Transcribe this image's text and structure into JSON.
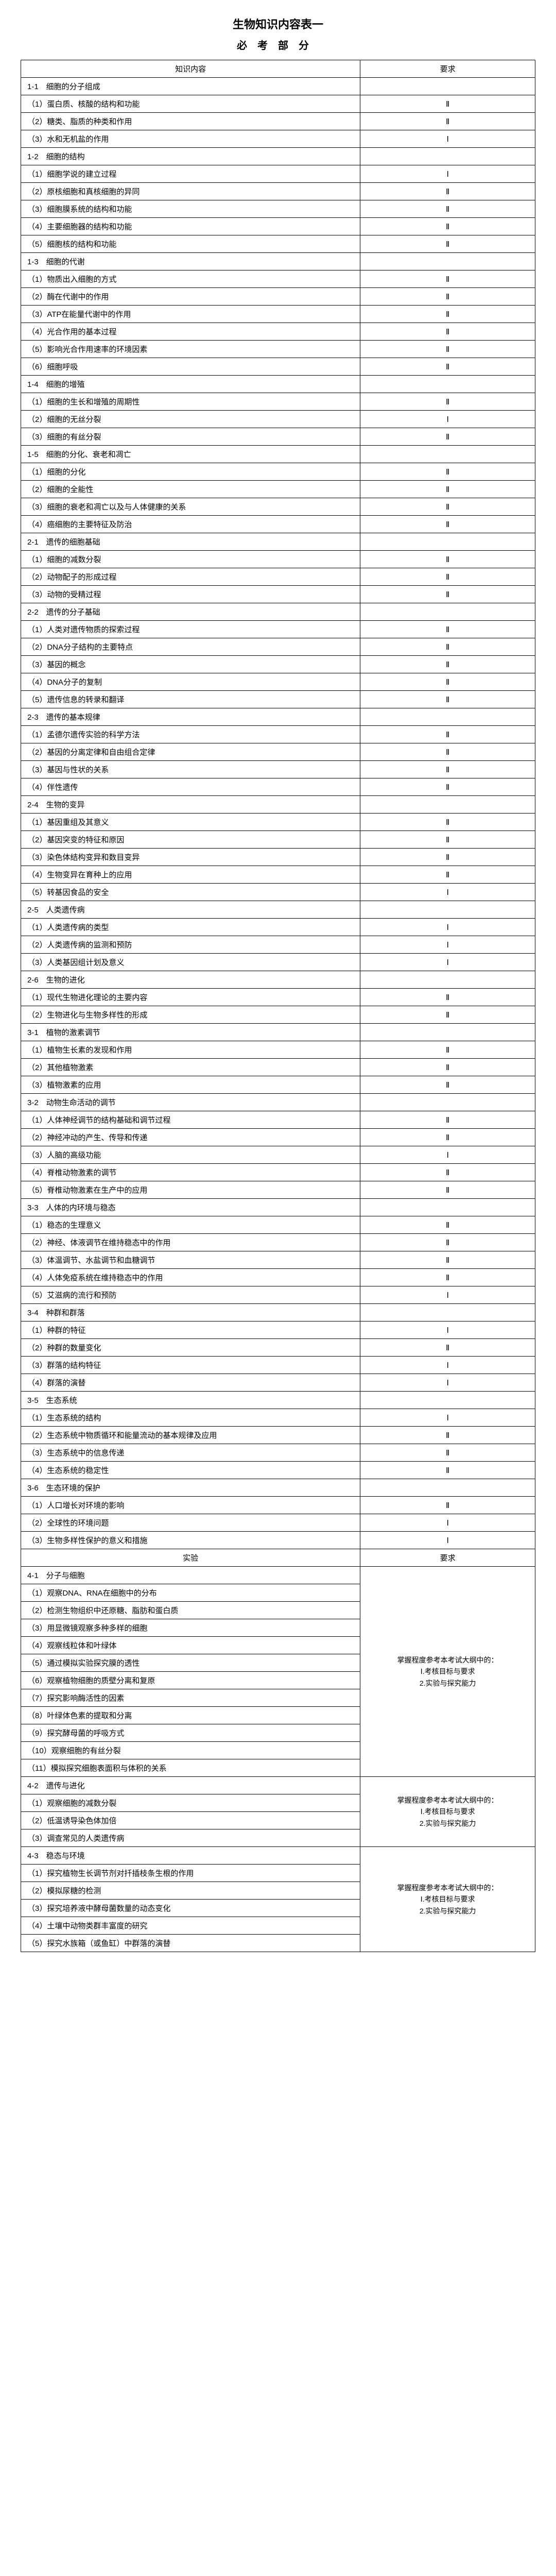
{
  "title": "生物知识内容表一",
  "subtitle": "必考部分",
  "headers": {
    "content": "知识内容",
    "req": "要求"
  },
  "sections": [
    {
      "h": "1-1　细胞的分子组成",
      "rows": [
        {
          "t": "（1）蛋白质、核酸的结构和功能",
          "r": "Ⅱ"
        },
        {
          "t": "（2）糖类、脂质的种类和作用",
          "r": "Ⅱ"
        },
        {
          "t": "（3）水和无机盐的作用",
          "r": "Ⅰ"
        }
      ]
    },
    {
      "h": "1-2　细胞的结构",
      "rows": [
        {
          "t": "（1）细胞学说的建立过程",
          "r": "Ⅰ"
        },
        {
          "t": "（2）原核细胞和真核细胞的异同",
          "r": "Ⅱ"
        },
        {
          "t": "（3）细胞膜系统的结构和功能",
          "r": "Ⅱ"
        },
        {
          "t": "（4）主要细胞器的结构和功能",
          "r": "Ⅱ"
        },
        {
          "t": "（5）细胞核的结构和功能",
          "r": "Ⅱ"
        }
      ]
    },
    {
      "h": "1-3　细胞的代谢",
      "rows": [
        {
          "t": "（1）物质出入细胞的方式",
          "r": "Ⅱ"
        },
        {
          "t": "（2）酶在代谢中的作用",
          "r": "Ⅱ"
        },
        {
          "t": "（3）ATP在能量代谢中的作用",
          "r": "Ⅱ"
        },
        {
          "t": "（4）光合作用的基本过程",
          "r": "Ⅱ"
        },
        {
          "t": "（5）影响光合作用速率的环境因素",
          "r": "Ⅱ"
        },
        {
          "t": "（6）细胞呼吸",
          "r": "Ⅱ"
        }
      ]
    },
    {
      "h": "1-4　细胞的增殖",
      "rows": [
        {
          "t": "（1）细胞的生长和增殖的周期性",
          "r": "Ⅱ"
        },
        {
          "t": "（2）细胞的无丝分裂",
          "r": "Ⅰ"
        },
        {
          "t": "（3）细胞的有丝分裂",
          "r": "Ⅱ"
        }
      ]
    },
    {
      "h": "1-5　细胞的分化、衰老和凋亡",
      "rows": [
        {
          "t": "（1）细胞的分化",
          "r": "Ⅱ"
        },
        {
          "t": "（2）细胞的全能性",
          "r": "Ⅱ"
        },
        {
          "t": "（3）细胞的衰老和凋亡以及与人体健康的关系",
          "r": "Ⅱ"
        },
        {
          "t": "（4）癌细胞的主要特征及防治",
          "r": "Ⅱ"
        }
      ]
    },
    {
      "h": "2-1　遗传的细胞基础",
      "rows": [
        {
          "t": "（1）细胞的减数分裂",
          "r": "Ⅱ"
        },
        {
          "t": "（2）动物配子的形成过程",
          "r": "Ⅱ"
        },
        {
          "t": "（3）动物的受精过程",
          "r": "Ⅱ"
        }
      ]
    },
    {
      "h": "2-2　遗传的分子基础",
      "rows": [
        {
          "t": "（1）人类对遗传物质的探索过程",
          "r": "Ⅱ"
        },
        {
          "t": "（2）DNA分子结构的主要特点",
          "r": "Ⅱ"
        },
        {
          "t": "（3）基因的概念",
          "r": "Ⅱ"
        },
        {
          "t": "（4）DNA分子的复制",
          "r": "Ⅱ"
        },
        {
          "t": "（5）遗传信息的转录和翻译",
          "r": "Ⅱ"
        }
      ]
    },
    {
      "h": "2-3　遗传的基本规律",
      "rows": [
        {
          "t": "（1）孟德尔遗传实验的科学方法",
          "r": "Ⅱ"
        },
        {
          "t": "（2）基因的分离定律和自由组合定律",
          "r": "Ⅱ"
        },
        {
          "t": "（3）基因与性状的关系",
          "r": "Ⅱ"
        },
        {
          "t": "（4）伴性遗传",
          "r": "Ⅱ"
        }
      ]
    },
    {
      "h": "2-4　生物的变异",
      "rows": [
        {
          "t": "（1）基因重组及其意义",
          "r": "Ⅱ"
        },
        {
          "t": "（2）基因突变的特征和原因",
          "r": "Ⅱ"
        },
        {
          "t": "（3）染色体结构变异和数目变异",
          "r": "Ⅱ"
        },
        {
          "t": "（4）生物变异在育种上的应用",
          "r": "Ⅱ"
        },
        {
          "t": "（5）转基因食品的安全",
          "r": "Ⅰ"
        }
      ]
    },
    {
      "h": "2-5　人类遗传病",
      "rows": [
        {
          "t": "（1）人类遗传病的类型",
          "r": "Ⅰ"
        },
        {
          "t": "（2）人类遗传病的监测和预防",
          "r": "Ⅰ"
        },
        {
          "t": "（3）人类基因组计划及意义",
          "r": "Ⅰ"
        }
      ]
    },
    {
      "h": "2-6　生物的进化",
      "rows": [
        {
          "t": "（1）现代生物进化理论的主要内容",
          "r": "Ⅱ"
        },
        {
          "t": "（2）生物进化与生物多样性的形成",
          "r": "Ⅱ"
        }
      ]
    },
    {
      "h": "3-1　植物的激素调节",
      "rows": [
        {
          "t": "（1）植物生长素的发现和作用",
          "r": "Ⅱ"
        },
        {
          "t": "（2）其他植物激素",
          "r": "Ⅱ"
        },
        {
          "t": "（3）植物激素的应用",
          "r": "Ⅱ"
        }
      ]
    },
    {
      "h": "3-2　动物生命活动的调节",
      "rows": [
        {
          "t": "（1）人体神经调节的结构基础和调节过程",
          "r": "Ⅱ"
        },
        {
          "t": "（2）神经冲动的产生、传导和传递",
          "r": "Ⅱ"
        },
        {
          "t": "（3）人脑的高级功能",
          "r": "Ⅰ"
        },
        {
          "t": "（4）脊椎动物激素的调节",
          "r": "Ⅱ"
        },
        {
          "t": "（5）脊椎动物激素在生产中的应用",
          "r": "Ⅱ"
        }
      ]
    },
    {
      "h": "3-3　人体的内环境与稳态",
      "rows": [
        {
          "t": "（1）稳态的生理意义",
          "r": "Ⅱ"
        },
        {
          "t": "（2）神经、体液调节在维持稳态中的作用",
          "r": "Ⅱ"
        },
        {
          "t": "（3）体温调节、水盐调节和血糖调节",
          "r": "Ⅱ"
        },
        {
          "t": "（4）人体免疫系统在维持稳态中的作用",
          "r": "Ⅱ"
        },
        {
          "t": "（5）艾滋病的流行和预防",
          "r": "Ⅰ"
        }
      ]
    },
    {
      "h": "3-4　种群和群落",
      "rows": [
        {
          "t": "（1）种群的特征",
          "r": "Ⅰ"
        },
        {
          "t": "（2）种群的数量变化",
          "r": "Ⅱ"
        },
        {
          "t": "（3）群落的结构特征",
          "r": "Ⅰ"
        },
        {
          "t": "（4）群落的演替",
          "r": "Ⅰ"
        }
      ]
    },
    {
      "h": "3-5　生态系统",
      "rows": [
        {
          "t": "（1）生态系统的结构",
          "r": "Ⅰ"
        },
        {
          "t": "（2）生态系统中物质循环和能量流动的基本规律及应用",
          "r": "Ⅱ"
        },
        {
          "t": "（3）生态系统中的信息传递",
          "r": "Ⅱ"
        },
        {
          "t": "（4）生态系统的稳定性",
          "r": "Ⅱ"
        }
      ]
    },
    {
      "h": "3-6　生态环境的保护",
      "rows": [
        {
          "t": "（1）人口增长对环境的影响",
          "r": "Ⅱ"
        },
        {
          "t": "（2）全球性的环境问题",
          "r": "Ⅰ"
        },
        {
          "t": "（3）生物多样性保护的意义和措施",
          "r": "Ⅰ"
        }
      ]
    }
  ],
  "exp_header": {
    "name": "实验",
    "req": "要求"
  },
  "exp": [
    {
      "h": "4-1　分子与细胞",
      "note": "掌握程度参考本考试大纲中的：\nⅠ.考核目标与要求\n2.实验与探究能力",
      "rows": [
        "（1）观察DNA、RNA在细胞中的分布",
        "（2）检测生物组织中还原糖、脂肪和蛋白质",
        "（3）用显微镜观察多种多样的细胞",
        "（4）观察线粒体和叶绿体",
        "（5）通过模拟实验探究膜的透性",
        "（6）观察植物细胞的质壁分离和复原",
        "（7）探究影响酶活性的因素",
        "（8）叶绿体色素的提取和分离",
        "（9）探究酵母菌的呼吸方式",
        "（10）观察细胞的有丝分裂",
        "（11）模拟探究细胞表面积与体积的关系"
      ]
    },
    {
      "h": "4-2　遗传与进化",
      "note": "掌握程度参考本考试大纲中的：\nⅠ.考核目标与要求\n2.实验与探究能力",
      "rows": [
        "（1）观察细胞的减数分裂",
        "（2）低温诱导染色体加倍",
        "（3）调查常见的人类遗传病"
      ]
    },
    {
      "h": "4-3　稳态与环境",
      "note": "掌握程度参考本考试大纲中的：\nⅠ.考核目标与要求\n2.实验与探究能力",
      "rows": [
        "（1）探究植物生长调节剂对扦插枝条生根的作用",
        "（2）模拟尿糖的检测",
        "（3）探究培养液中酵母菌数量的动态变化",
        "（4）土壤中动物类群丰富度的研究",
        "（5）探究水族箱（或鱼缸）中群落的演替"
      ]
    }
  ]
}
